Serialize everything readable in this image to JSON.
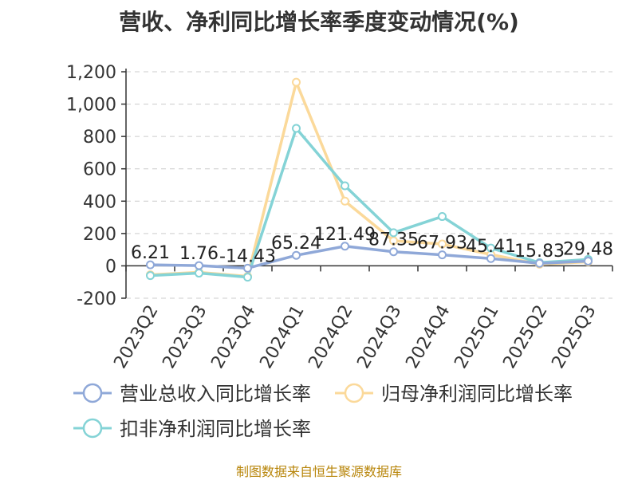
{
  "chart_data": {
    "type": "line",
    "title": "营收、净利同比增长率季度变动情况(%)",
    "categories": [
      "2023Q2",
      "2023Q3",
      "2023Q4",
      "2024Q1",
      "2024Q2",
      "2024Q3",
      "2024Q4",
      "2025Q1",
      "2025Q2",
      "2025Q3"
    ],
    "ylim": [
      -200,
      1200
    ],
    "yticks": [
      "-200",
      "0",
      "200",
      "400",
      "600",
      "800",
      "1,000",
      "1,200"
    ],
    "grid": true,
    "legend_position": "bottom",
    "series": [
      {
        "name": "营业总收入同比增长率",
        "color": "#8fa8d8",
        "values": [
          6.21,
          1.76,
          -14.43,
          65.24,
          121.49,
          87.35,
          67.93,
          45.41,
          15.83,
          29.48
        ],
        "data_labels": [
          "6.21",
          "1.76",
          "-14.43",
          "65.24",
          "121.49",
          "87.35",
          "67.93",
          "45.41",
          "15.83",
          "29.48"
        ]
      },
      {
        "name": "归母净利润同比增长率",
        "color": "#fbd99a",
        "values": [
          -55,
          -40,
          -65,
          1135,
          400,
          155,
          135,
          70,
          10,
          25
        ]
      },
      {
        "name": "扣非净利润同比增长率",
        "color": "#84d3d6",
        "values": [
          -60,
          -45,
          -70,
          850,
          495,
          205,
          305,
          110,
          20,
          40
        ]
      }
    ]
  },
  "source": "制图数据来自恒生聚源数据库"
}
